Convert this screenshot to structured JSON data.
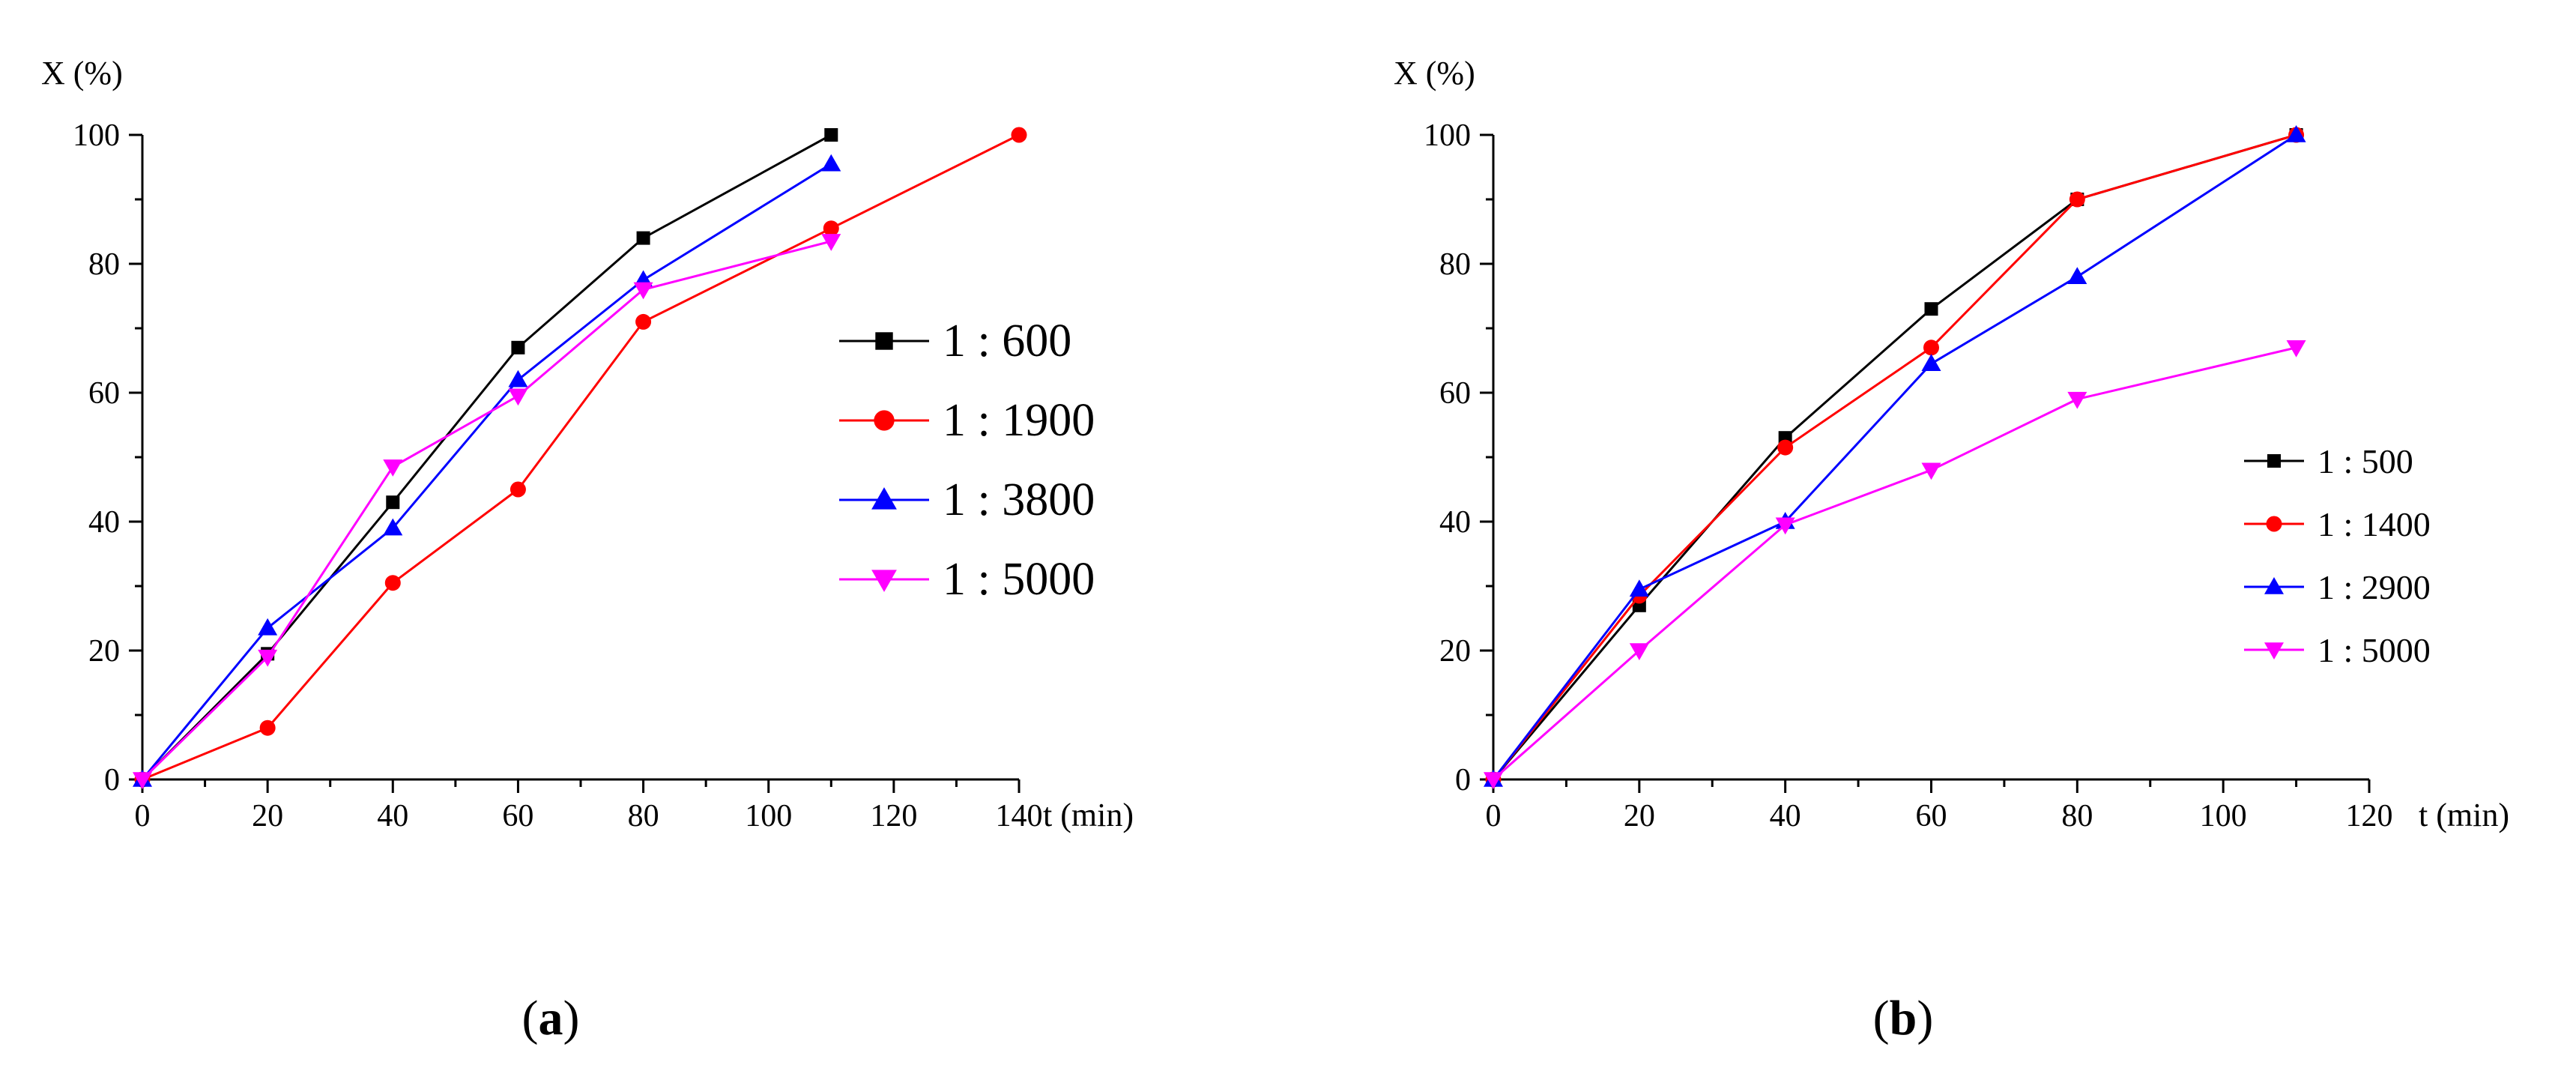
{
  "chart_data": [
    {
      "type": "line",
      "panel": "a",
      "panel_label": "(a)",
      "panel_letter": "a",
      "ylabel": "X (%)",
      "xlabel": "t (min)",
      "xlim": [
        0,
        140
      ],
      "ylim": [
        0,
        100
      ],
      "xticks": [
        0,
        20,
        40,
        60,
        80,
        100,
        120,
        140
      ],
      "yticks": [
        0,
        20,
        40,
        60,
        80,
        100
      ],
      "legend_position": "center-right",
      "series": [
        {
          "name": "1 : 600",
          "color": "#000000",
          "marker": "square",
          "x": [
            0,
            20,
            40,
            60,
            80,
            110
          ],
          "y": [
            0,
            19.5,
            43,
            67,
            84,
            100
          ]
        },
        {
          "name": "1 : 1900",
          "color": "#ff0000",
          "marker": "circle",
          "x": [
            0,
            20,
            40,
            60,
            80,
            110,
            140
          ],
          "y": [
            0,
            8,
            30.5,
            45,
            71,
            85.5,
            100
          ]
        },
        {
          "name": "1 : 3800",
          "color": "#0000ff",
          "marker": "triangle-up",
          "x": [
            0,
            20,
            40,
            60,
            80,
            110
          ],
          "y": [
            0,
            23.5,
            39,
            62,
            77.5,
            95.5
          ]
        },
        {
          "name": "1 : 5000",
          "color": "#ff00ff",
          "marker": "triangle-down",
          "x": [
            0,
            20,
            40,
            60,
            80,
            110
          ],
          "y": [
            0,
            19,
            48.5,
            59.5,
            76,
            83.5
          ]
        }
      ]
    },
    {
      "type": "line",
      "panel": "b",
      "panel_label": "(b)",
      "panel_letter": "b",
      "ylabel": "X (%)",
      "xlabel": "t (min)",
      "xlim": [
        0,
        120
      ],
      "ylim": [
        0,
        100
      ],
      "xticks": [
        0,
        20,
        40,
        60,
        80,
        100,
        120
      ],
      "yticks": [
        0,
        20,
        40,
        60,
        80,
        100
      ],
      "legend_position": "lower-right",
      "series": [
        {
          "name": "1 : 500",
          "color": "#000000",
          "marker": "square",
          "x": [
            0,
            20,
            40,
            60,
            80,
            110
          ],
          "y": [
            0,
            27,
            53,
            73,
            90,
            100
          ]
        },
        {
          "name": "1 : 1400",
          "color": "#ff0000",
          "marker": "circle",
          "x": [
            0,
            20,
            40,
            60,
            80,
            110
          ],
          "y": [
            0,
            28.5,
            51.5,
            67,
            90,
            100
          ]
        },
        {
          "name": "1 : 2900",
          "color": "#0000ff",
          "marker": "triangle-up",
          "x": [
            0,
            20,
            40,
            60,
            80,
            110
          ],
          "y": [
            0,
            29.5,
            40,
            64.5,
            78,
            100
          ]
        },
        {
          "name": "1 : 5000",
          "color": "#ff00ff",
          "marker": "triangle-down",
          "x": [
            0,
            20,
            40,
            60,
            80,
            110
          ],
          "y": [
            0,
            20,
            39.5,
            48,
            59,
            67
          ]
        }
      ]
    }
  ]
}
